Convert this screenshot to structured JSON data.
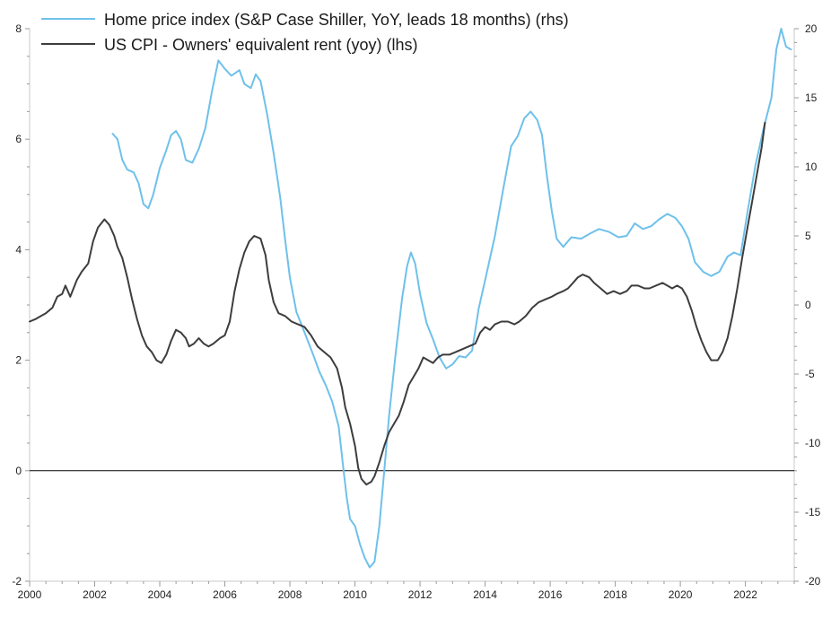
{
  "chart_data": {
    "type": "line",
    "title": "",
    "colors": {
      "home_price": "#6ec1ea",
      "oer": "#3d3d3d",
      "zero_line": "#000000",
      "axis": "#000000",
      "frame": "#c8c8c8"
    },
    "x_axis": {
      "range": [
        2000,
        2023.5
      ],
      "ticks": [
        2000,
        2002,
        2004,
        2006,
        2008,
        2010,
        2012,
        2014,
        2016,
        2018,
        2020,
        2022
      ],
      "tick_labels": [
        "2000",
        "2002",
        "2004",
        "2006",
        "2008",
        "2010",
        "2012",
        "2014",
        "2016",
        "2018",
        "2020",
        "2022"
      ]
    },
    "y_left": {
      "range": [
        -2,
        8
      ],
      "ticks": [
        -2,
        0,
        2,
        4,
        6,
        8
      ],
      "tick_labels": [
        "-2",
        "0",
        "2",
        "4",
        "6",
        "8"
      ],
      "label": "lhs"
    },
    "y_right": {
      "range": [
        -20,
        20
      ],
      "ticks": [
        -20,
        -15,
        -10,
        -5,
        0,
        5,
        10,
        15,
        20
      ],
      "tick_labels": [
        "-20",
        "-15",
        "-10",
        "-5",
        "0",
        "5",
        "10",
        "15",
        "20"
      ],
      "label": "rhs"
    },
    "series": [
      {
        "name": "Home price index (S&P Case Shiller, YoY, leads 18 months) (rhs)",
        "axis": "right",
        "points": [
          [
            2002.55,
            12.4
          ],
          [
            2002.7,
            12.0
          ],
          [
            2002.85,
            10.5
          ],
          [
            2003.0,
            9.8
          ],
          [
            2003.2,
            9.6
          ],
          [
            2003.35,
            8.8
          ],
          [
            2003.5,
            7.3
          ],
          [
            2003.65,
            7.0
          ],
          [
            2003.8,
            8.0
          ],
          [
            2004.0,
            9.9
          ],
          [
            2004.2,
            11.2
          ],
          [
            2004.35,
            12.3
          ],
          [
            2004.5,
            12.6
          ],
          [
            2004.65,
            12.0
          ],
          [
            2004.8,
            10.5
          ],
          [
            2005.0,
            10.3
          ],
          [
            2005.2,
            11.3
          ],
          [
            2005.4,
            12.8
          ],
          [
            2005.6,
            15.4
          ],
          [
            2005.8,
            17.7
          ],
          [
            2006.0,
            17.1
          ],
          [
            2006.2,
            16.6
          ],
          [
            2006.45,
            17.0
          ],
          [
            2006.6,
            16.0
          ],
          [
            2006.8,
            15.7
          ],
          [
            2006.95,
            16.7
          ],
          [
            2007.1,
            16.2
          ],
          [
            2007.3,
            13.8
          ],
          [
            2007.5,
            11.0
          ],
          [
            2007.7,
            7.8
          ],
          [
            2007.85,
            4.8
          ],
          [
            2008.0,
            2.0
          ],
          [
            2008.2,
            -0.5
          ],
          [
            2008.45,
            -2.0
          ],
          [
            2008.7,
            -3.5
          ],
          [
            2008.9,
            -4.8
          ],
          [
            2009.1,
            -5.8
          ],
          [
            2009.3,
            -7.0
          ],
          [
            2009.5,
            -8.8
          ],
          [
            2009.65,
            -12.0
          ],
          [
            2009.75,
            -14.0
          ],
          [
            2009.85,
            -15.5
          ],
          [
            2010.0,
            -16.0
          ],
          [
            2010.15,
            -17.3
          ],
          [
            2010.3,
            -18.3
          ],
          [
            2010.45,
            -19.0
          ],
          [
            2010.6,
            -18.6
          ],
          [
            2010.75,
            -16.0
          ],
          [
            2010.9,
            -12.0
          ],
          [
            2011.05,
            -8.0
          ],
          [
            2011.25,
            -3.5
          ],
          [
            2011.45,
            0.5
          ],
          [
            2011.6,
            2.8
          ],
          [
            2011.72,
            3.8
          ],
          [
            2011.85,
            3.0
          ],
          [
            2012.0,
            0.8
          ],
          [
            2012.2,
            -1.3
          ],
          [
            2012.4,
            -2.5
          ],
          [
            2012.6,
            -3.8
          ],
          [
            2012.8,
            -4.6
          ],
          [
            2013.0,
            -4.3
          ],
          [
            2013.2,
            -3.7
          ],
          [
            2013.4,
            -3.8
          ],
          [
            2013.6,
            -3.3
          ],
          [
            2013.8,
            -0.3
          ],
          [
            2014.0,
            1.8
          ],
          [
            2014.3,
            5.0
          ],
          [
            2014.55,
            8.3
          ],
          [
            2014.8,
            11.5
          ],
          [
            2015.0,
            12.2
          ],
          [
            2015.2,
            13.5
          ],
          [
            2015.4,
            14.0
          ],
          [
            2015.6,
            13.4
          ],
          [
            2015.75,
            12.3
          ],
          [
            2015.9,
            9.3
          ],
          [
            2016.05,
            6.8
          ],
          [
            2016.2,
            4.8
          ],
          [
            2016.4,
            4.2
          ],
          [
            2016.65,
            4.9
          ],
          [
            2016.95,
            4.8
          ],
          [
            2017.25,
            5.2
          ],
          [
            2017.5,
            5.5
          ],
          [
            2017.8,
            5.3
          ],
          [
            2018.1,
            4.9
          ],
          [
            2018.35,
            5.0
          ],
          [
            2018.6,
            5.9
          ],
          [
            2018.85,
            5.5
          ],
          [
            2019.1,
            5.7
          ],
          [
            2019.35,
            6.2
          ],
          [
            2019.6,
            6.6
          ],
          [
            2019.85,
            6.3
          ],
          [
            2020.05,
            5.7
          ],
          [
            2020.25,
            4.8
          ],
          [
            2020.45,
            3.1
          ],
          [
            2020.7,
            2.4
          ],
          [
            2020.95,
            2.1
          ],
          [
            2021.2,
            2.4
          ],
          [
            2021.45,
            3.5
          ],
          [
            2021.65,
            3.8
          ],
          [
            2021.85,
            3.6
          ],
          [
            2022.05,
            6.5
          ],
          [
            2022.3,
            10.0
          ],
          [
            2022.55,
            12.7
          ],
          [
            2022.8,
            15.0
          ],
          [
            2022.95,
            18.5
          ],
          [
            2023.1,
            20.0
          ],
          [
            2023.25,
            18.7
          ],
          [
            2023.4,
            18.5
          ]
        ]
      },
      {
        "name": "US CPI - Owners' equivalent rent (yoy) (lhs)",
        "axis": "left",
        "points": [
          [
            2000.0,
            2.7
          ],
          [
            2000.2,
            2.75
          ],
          [
            2000.35,
            2.8
          ],
          [
            2000.5,
            2.85
          ],
          [
            2000.7,
            2.95
          ],
          [
            2000.85,
            3.15
          ],
          [
            2001.0,
            3.2
          ],
          [
            2001.1,
            3.35
          ],
          [
            2001.25,
            3.15
          ],
          [
            2001.45,
            3.45
          ],
          [
            2001.6,
            3.6
          ],
          [
            2001.8,
            3.75
          ],
          [
            2001.95,
            4.15
          ],
          [
            2002.1,
            4.4
          ],
          [
            2002.3,
            4.55
          ],
          [
            2002.45,
            4.45
          ],
          [
            2002.6,
            4.25
          ],
          [
            2002.7,
            4.05
          ],
          [
            2002.85,
            3.85
          ],
          [
            2003.0,
            3.5
          ],
          [
            2003.15,
            3.1
          ],
          [
            2003.3,
            2.75
          ],
          [
            2003.45,
            2.45
          ],
          [
            2003.6,
            2.25
          ],
          [
            2003.75,
            2.15
          ],
          [
            2003.9,
            2.0
          ],
          [
            2004.05,
            1.95
          ],
          [
            2004.2,
            2.1
          ],
          [
            2004.35,
            2.35
          ],
          [
            2004.5,
            2.55
          ],
          [
            2004.65,
            2.5
          ],
          [
            2004.8,
            2.4
          ],
          [
            2004.9,
            2.25
          ],
          [
            2005.05,
            2.3
          ],
          [
            2005.2,
            2.4
          ],
          [
            2005.35,
            2.3
          ],
          [
            2005.5,
            2.25
          ],
          [
            2005.65,
            2.3
          ],
          [
            2005.85,
            2.4
          ],
          [
            2006.0,
            2.45
          ],
          [
            2006.15,
            2.7
          ],
          [
            2006.3,
            3.25
          ],
          [
            2006.45,
            3.65
          ],
          [
            2006.6,
            3.95
          ],
          [
            2006.75,
            4.15
          ],
          [
            2006.9,
            4.25
          ],
          [
            2007.1,
            4.2
          ],
          [
            2007.25,
            3.9
          ],
          [
            2007.35,
            3.45
          ],
          [
            2007.5,
            3.05
          ],
          [
            2007.65,
            2.85
          ],
          [
            2007.85,
            2.8
          ],
          [
            2008.05,
            2.7
          ],
          [
            2008.25,
            2.65
          ],
          [
            2008.45,
            2.6
          ],
          [
            2008.65,
            2.45
          ],
          [
            2008.85,
            2.25
          ],
          [
            2009.05,
            2.15
          ],
          [
            2009.25,
            2.05
          ],
          [
            2009.45,
            1.85
          ],
          [
            2009.6,
            1.5
          ],
          [
            2009.7,
            1.15
          ],
          [
            2009.85,
            0.85
          ],
          [
            2010.0,
            0.45
          ],
          [
            2010.1,
            0.05
          ],
          [
            2010.2,
            -0.15
          ],
          [
            2010.35,
            -0.25
          ],
          [
            2010.5,
            -0.2
          ],
          [
            2010.6,
            -0.1
          ],
          [
            2010.75,
            0.15
          ],
          [
            2010.9,
            0.45
          ],
          [
            2011.05,
            0.7
          ],
          [
            2011.2,
            0.85
          ],
          [
            2011.35,
            1.0
          ],
          [
            2011.5,
            1.25
          ],
          [
            2011.65,
            1.55
          ],
          [
            2011.8,
            1.7
          ],
          [
            2011.95,
            1.85
          ],
          [
            2012.1,
            2.05
          ],
          [
            2012.25,
            2.0
          ],
          [
            2012.4,
            1.95
          ],
          [
            2012.55,
            2.05
          ],
          [
            2012.7,
            2.1
          ],
          [
            2012.9,
            2.1
          ],
          [
            2013.1,
            2.15
          ],
          [
            2013.3,
            2.2
          ],
          [
            2013.5,
            2.25
          ],
          [
            2013.7,
            2.3
          ],
          [
            2013.85,
            2.5
          ],
          [
            2014.0,
            2.6
          ],
          [
            2014.15,
            2.55
          ],
          [
            2014.3,
            2.65
          ],
          [
            2014.5,
            2.7
          ],
          [
            2014.7,
            2.7
          ],
          [
            2014.9,
            2.65
          ],
          [
            2015.05,
            2.7
          ],
          [
            2015.25,
            2.8
          ],
          [
            2015.45,
            2.95
          ],
          [
            2015.65,
            3.05
          ],
          [
            2015.85,
            3.1
          ],
          [
            2016.05,
            3.15
          ],
          [
            2016.2,
            3.2
          ],
          [
            2016.4,
            3.25
          ],
          [
            2016.55,
            3.3
          ],
          [
            2016.7,
            3.4
          ],
          [
            2016.85,
            3.5
          ],
          [
            2017.0,
            3.55
          ],
          [
            2017.2,
            3.5
          ],
          [
            2017.35,
            3.4
          ],
          [
            2017.55,
            3.3
          ],
          [
            2017.75,
            3.2
          ],
          [
            2017.95,
            3.25
          ],
          [
            2018.15,
            3.2
          ],
          [
            2018.35,
            3.25
          ],
          [
            2018.5,
            3.35
          ],
          [
            2018.7,
            3.35
          ],
          [
            2018.9,
            3.3
          ],
          [
            2019.05,
            3.3
          ],
          [
            2019.25,
            3.35
          ],
          [
            2019.45,
            3.4
          ],
          [
            2019.6,
            3.35
          ],
          [
            2019.75,
            3.3
          ],
          [
            2019.9,
            3.35
          ],
          [
            2020.05,
            3.3
          ],
          [
            2020.2,
            3.15
          ],
          [
            2020.35,
            2.9
          ],
          [
            2020.5,
            2.6
          ],
          [
            2020.65,
            2.35
          ],
          [
            2020.8,
            2.15
          ],
          [
            2020.95,
            2.0
          ],
          [
            2021.15,
            2.0
          ],
          [
            2021.3,
            2.15
          ],
          [
            2021.45,
            2.4
          ],
          [
            2021.6,
            2.8
          ],
          [
            2021.75,
            3.3
          ],
          [
            2021.9,
            3.85
          ],
          [
            2022.05,
            4.35
          ],
          [
            2022.2,
            4.85
          ],
          [
            2022.35,
            5.35
          ],
          [
            2022.5,
            5.85
          ],
          [
            2022.6,
            6.3
          ]
        ]
      }
    ],
    "legend": {
      "position": "top-left",
      "entries": [
        "Home price index (S&P Case Shiller, YoY, leads 18 months) (rhs)",
        "US CPI - Owners' equivalent rent (yoy) (lhs)"
      ]
    },
    "reference_lines": [
      {
        "axis": "left",
        "value": 0
      }
    ]
  }
}
